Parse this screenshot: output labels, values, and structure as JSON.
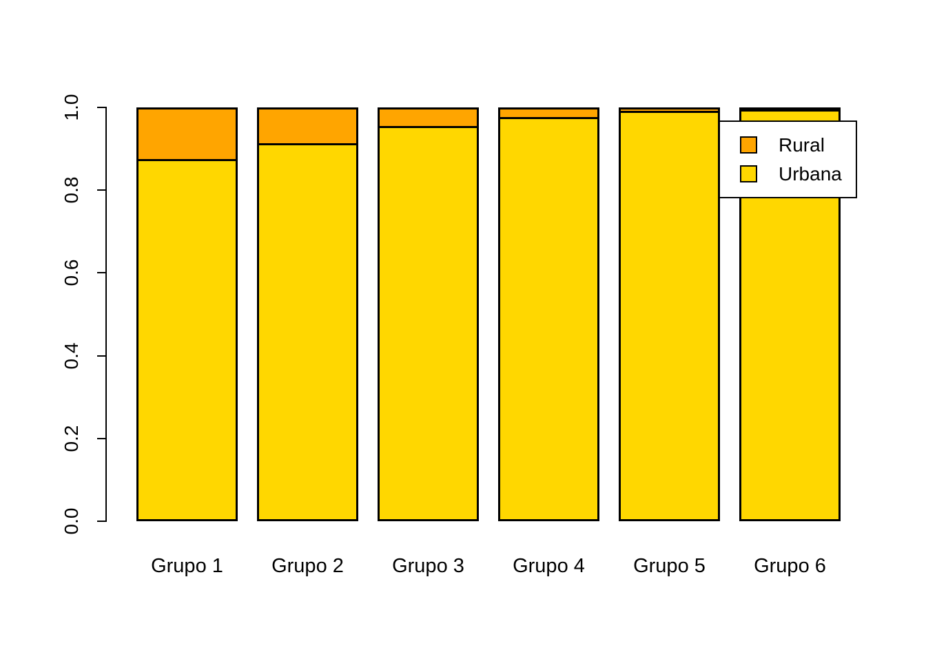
{
  "chart_data": {
    "type": "bar",
    "stacked": true,
    "title": "",
    "xlabel": "",
    "ylabel": "",
    "categories": [
      "Grupo 1",
      "Grupo 2",
      "Grupo 3",
      "Grupo 4",
      "Grupo 5",
      "Grupo 6"
    ],
    "series": [
      {
        "name": "Urbana",
        "color": "#FFD700",
        "values": [
          0.874,
          0.912,
          0.955,
          0.977,
          0.992,
          0.997
        ]
      },
      {
        "name": "Rural",
        "color": "#FFA500",
        "values": [
          0.126,
          0.088,
          0.045,
          0.023,
          0.008,
          0.003
        ]
      }
    ],
    "ylim": [
      0.0,
      1.0
    ],
    "yticks": [
      0.0,
      0.2,
      0.4,
      0.6,
      0.8,
      1.0
    ],
    "ytick_labels": [
      "0.0",
      "0.2",
      "0.4",
      "0.6",
      "0.8",
      "1.0"
    ],
    "grid": false,
    "legend_position": "top-right",
    "bar_border_color": "#000000",
    "background_color": "#FFFFFF"
  },
  "legend": {
    "items": [
      {
        "label": "Rural",
        "color": "#FFA500"
      },
      {
        "label": "Urbana",
        "color": "#FFD700"
      }
    ]
  }
}
